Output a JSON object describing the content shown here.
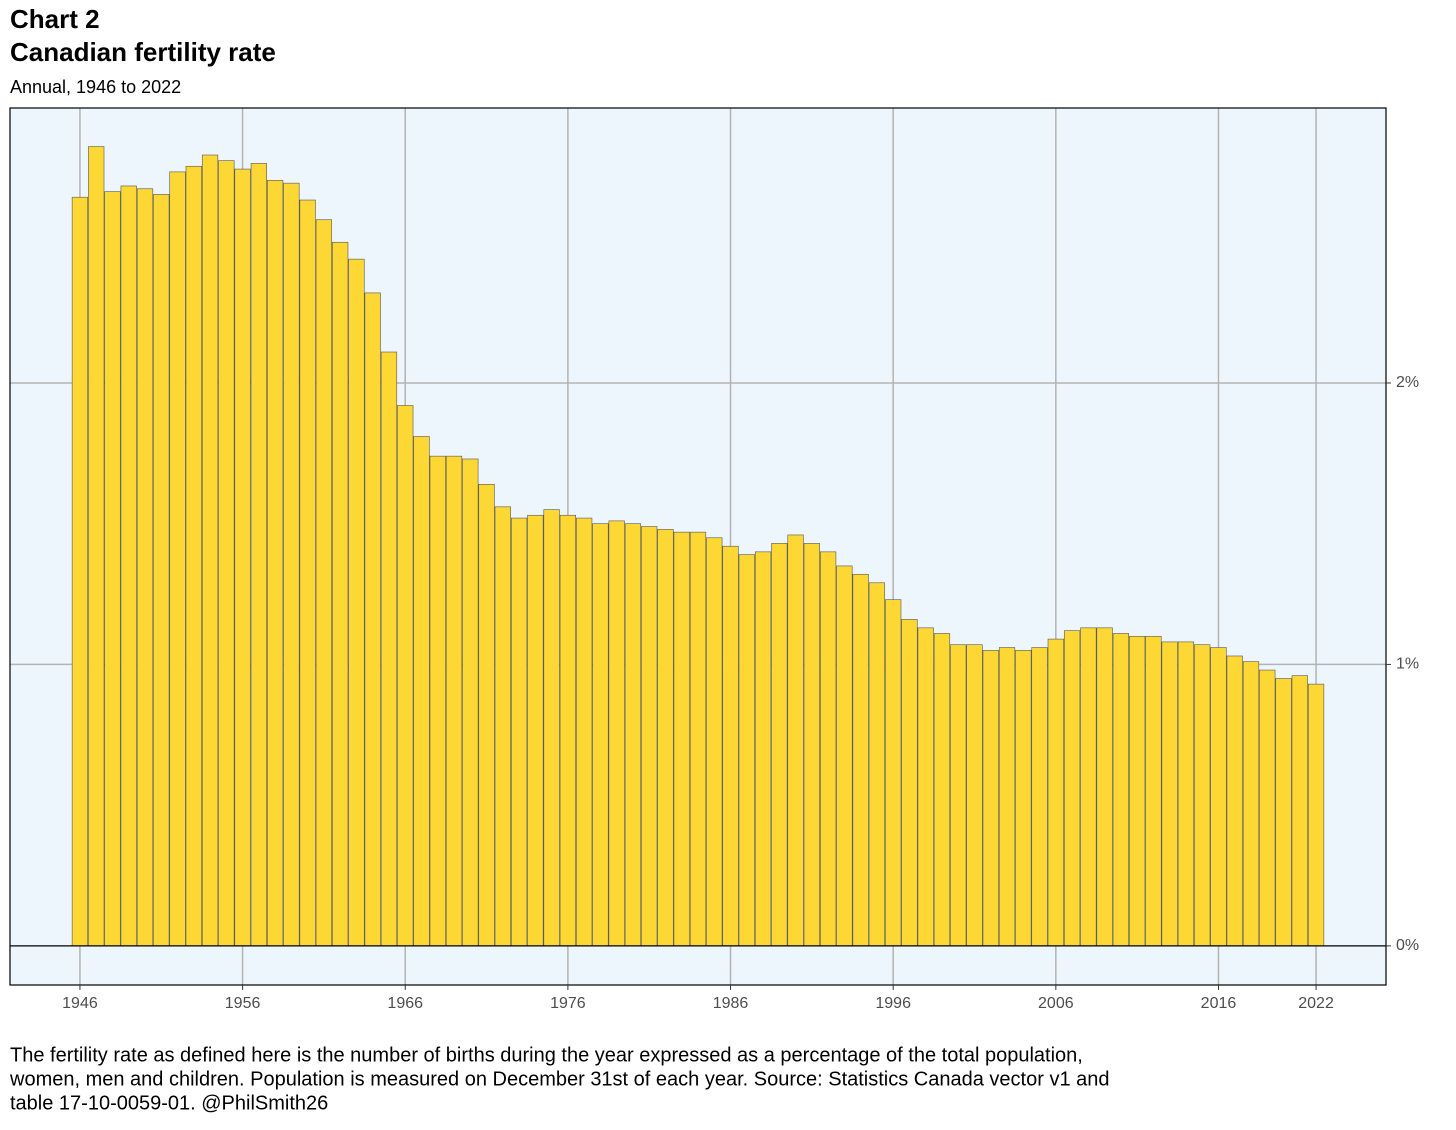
{
  "chart_data": {
    "type": "bar",
    "title": "Chart 2",
    "subtitle_main": "Canadian fertility rate",
    "subtitle": "Annual, 1946 to 2022",
    "footnote": [
      "The fertility rate as defined here is the number of births during the year expressed as a percentage of the total population,",
      "women, men and children. Population is measured on December 31st of each year. Source: Statistics Canada vector v1 and",
      "table 17-10-0059-01. @PhilSmith26"
    ],
    "x": [
      1946,
      1947,
      1948,
      1949,
      1950,
      1951,
      1952,
      1953,
      1954,
      1955,
      1956,
      1957,
      1958,
      1959,
      1960,
      1961,
      1962,
      1963,
      1964,
      1965,
      1966,
      1967,
      1968,
      1969,
      1970,
      1971,
      1972,
      1973,
      1974,
      1975,
      1976,
      1977,
      1978,
      1979,
      1980,
      1981,
      1982,
      1983,
      1984,
      1985,
      1986,
      1987,
      1988,
      1989,
      1990,
      1991,
      1992,
      1993,
      1994,
      1995,
      1996,
      1997,
      1998,
      1999,
      2000,
      2001,
      2002,
      2003,
      2004,
      2005,
      2006,
      2007,
      2008,
      2009,
      2010,
      2011,
      2012,
      2013,
      2014,
      2015,
      2016,
      2017,
      2018,
      2019,
      2020,
      2021,
      2022
    ],
    "values": [
      2.66,
      2.84,
      2.68,
      2.7,
      2.69,
      2.67,
      2.75,
      2.77,
      2.81,
      2.79,
      2.76,
      2.78,
      2.72,
      2.71,
      2.65,
      2.58,
      2.5,
      2.44,
      2.32,
      2.11,
      1.92,
      1.81,
      1.74,
      1.74,
      1.73,
      1.64,
      1.56,
      1.52,
      1.53,
      1.55,
      1.53,
      1.52,
      1.5,
      1.51,
      1.5,
      1.49,
      1.48,
      1.47,
      1.47,
      1.45,
      1.42,
      1.39,
      1.4,
      1.43,
      1.46,
      1.43,
      1.4,
      1.35,
      1.32,
      1.29,
      1.23,
      1.16,
      1.13,
      1.11,
      1.07,
      1.07,
      1.05,
      1.06,
      1.05,
      1.06,
      1.09,
      1.12,
      1.13,
      1.13,
      1.11,
      1.1,
      1.1,
      1.08,
      1.08,
      1.07,
      1.06,
      1.03,
      1.01,
      0.98,
      0.95,
      0.96,
      0.93
    ],
    "color": "#fdd835",
    "xlim": [
      1941.7,
      2026.3
    ],
    "xticks": [
      1946,
      1956,
      1966,
      1976,
      1986,
      1996,
      2006,
      2016,
      2022
    ],
    "ylim": [
      -0.139,
      2.977
    ],
    "yticks": [
      {
        "value": 0,
        "label": "0%"
      },
      {
        "value": 1,
        "label": "1%"
      },
      {
        "value": 2,
        "label": "2%"
      }
    ],
    "grid": true
  }
}
